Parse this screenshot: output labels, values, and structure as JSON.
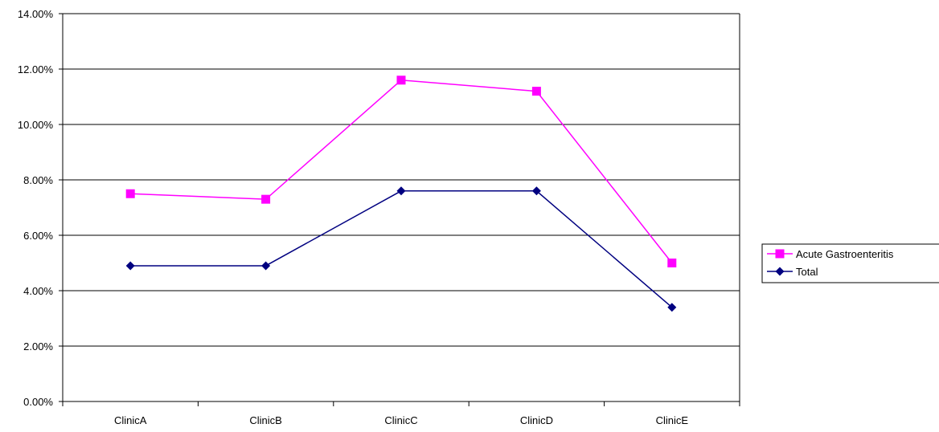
{
  "chart_data": {
    "type": "line",
    "categories": [
      "ClinicA",
      "ClinicB",
      "ClinicC",
      "ClinicD",
      "ClinicE"
    ],
    "series": [
      {
        "name": "Acute Gastroenteritis",
        "values": [
          7.5,
          7.3,
          11.6,
          11.2,
          5.0
        ],
        "color": "#ff00ff",
        "marker": "square"
      },
      {
        "name": "Total",
        "values": [
          4.9,
          4.9,
          7.6,
          7.6,
          3.4
        ],
        "color": "#000080",
        "marker": "diamond"
      }
    ],
    "y_ticks": [
      "0.00%",
      "2.00%",
      "4.00%",
      "6.00%",
      "8.00%",
      "10.00%",
      "12.00%",
      "14.00%"
    ],
    "ylim": [
      0,
      14
    ],
    "y_unit": "percent",
    "grid": true,
    "legend_position": "right",
    "title": "",
    "xlabel": "",
    "ylabel": ""
  }
}
